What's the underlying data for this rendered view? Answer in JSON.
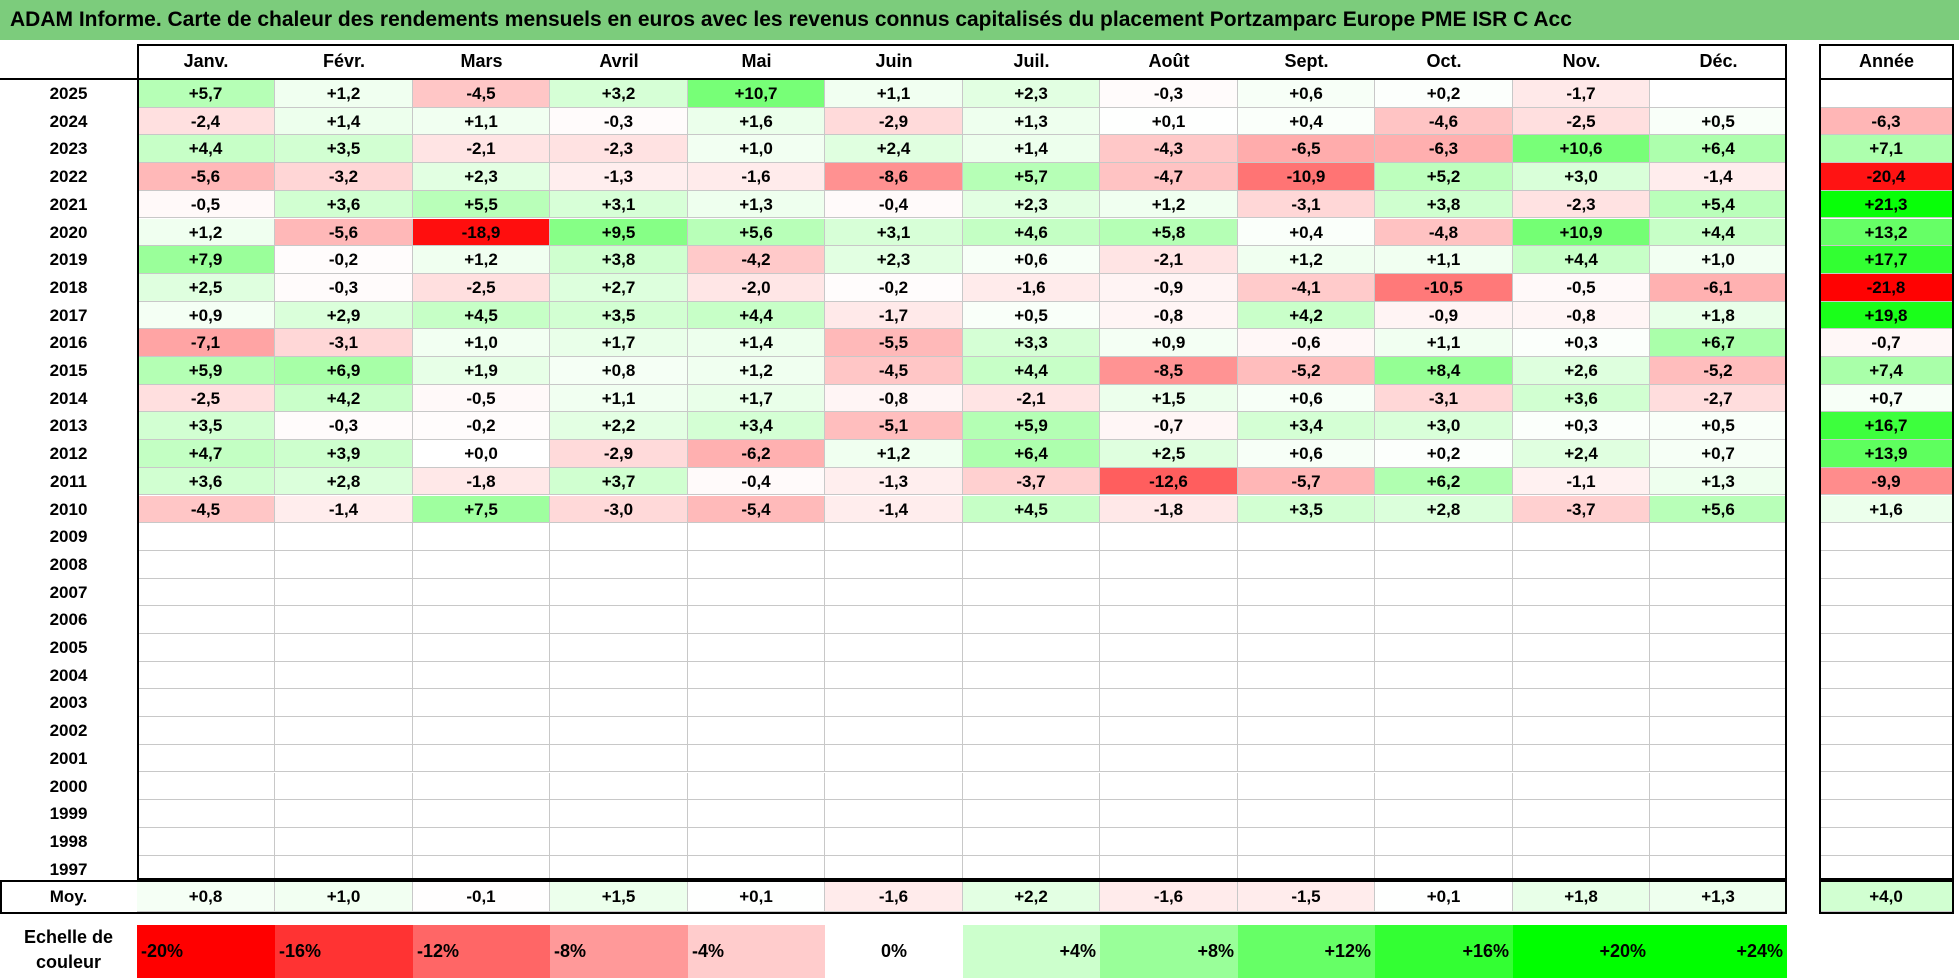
{
  "chart_data": {
    "type": "heatmap",
    "title": "ADAM Informe. Carte de chaleur des rendements mensuels en euros avec les revenus connus capitalisés du placement Portzamparc Europe PME ISR C Acc",
    "months": [
      "Janv.",
      "Févr.",
      "Mars",
      "Avril",
      "Mai",
      "Juin",
      "Juil.",
      "Août",
      "Sept.",
      "Oct.",
      "Nov.",
      "Déc."
    ],
    "year_header": "Année",
    "rows": [
      {
        "year": "2025",
        "months": [
          "+5,7",
          "+1,2",
          "-4,5",
          "+3,2",
          "+10,7",
          "+1,1",
          "+2,3",
          "-0,3",
          "+0,6",
          "+0,2",
          "-1,7",
          ""
        ],
        "annual": ""
      },
      {
        "year": "2024",
        "months": [
          "-2,4",
          "+1,4",
          "+1,1",
          "-0,3",
          "+1,6",
          "-2,9",
          "+1,3",
          "+0,1",
          "+0,4",
          "-4,6",
          "-2,5",
          "+0,5"
        ],
        "annual": "-6,3"
      },
      {
        "year": "2023",
        "months": [
          "+4,4",
          "+3,5",
          "-2,1",
          "-2,3",
          "+1,0",
          "+2,4",
          "+1,4",
          "-4,3",
          "-6,5",
          "-6,3",
          "+10,6",
          "+6,4"
        ],
        "annual": "+7,1"
      },
      {
        "year": "2022",
        "months": [
          "-5,6",
          "-3,2",
          "+2,3",
          "-1,3",
          "-1,6",
          "-8,6",
          "+5,7",
          "-4,7",
          "-10,9",
          "+5,2",
          "+3,0",
          "-1,4"
        ],
        "annual": "-20,4"
      },
      {
        "year": "2021",
        "months": [
          "-0,5",
          "+3,6",
          "+5,5",
          "+3,1",
          "+1,3",
          "-0,4",
          "+2,3",
          "+1,2",
          "-3,1",
          "+3,8",
          "-2,3",
          "+5,4"
        ],
        "annual": "+21,3"
      },
      {
        "year": "2020",
        "months": [
          "+1,2",
          "-5,6",
          "-18,9",
          "+9,5",
          "+5,6",
          "+3,1",
          "+4,6",
          "+5,8",
          "+0,4",
          "-4,8",
          "+10,9",
          "+4,4"
        ],
        "annual": "+13,2"
      },
      {
        "year": "2019",
        "months": [
          "+7,9",
          "-0,2",
          "+1,2",
          "+3,8",
          "-4,2",
          "+2,3",
          "+0,6",
          "-2,1",
          "+1,2",
          "+1,1",
          "+4,4",
          "+1,0"
        ],
        "annual": "+17,7"
      },
      {
        "year": "2018",
        "months": [
          "+2,5",
          "-0,3",
          "-2,5",
          "+2,7",
          "-2,0",
          "-0,2",
          "-1,6",
          "-0,9",
          "-4,1",
          "-10,5",
          "-0,5",
          "-6,1"
        ],
        "annual": "-21,8"
      },
      {
        "year": "2017",
        "months": [
          "+0,9",
          "+2,9",
          "+4,5",
          "+3,5",
          "+4,4",
          "-1,7",
          "+0,5",
          "-0,8",
          "+4,2",
          "-0,9",
          "-0,8",
          "+1,8"
        ],
        "annual": "+19,8"
      },
      {
        "year": "2016",
        "months": [
          "-7,1",
          "-3,1",
          "+1,0",
          "+1,7",
          "+1,4",
          "-5,5",
          "+3,3",
          "+0,9",
          "-0,6",
          "+1,1",
          "+0,3",
          "+6,7"
        ],
        "annual": "-0,7"
      },
      {
        "year": "2015",
        "months": [
          "+5,9",
          "+6,9",
          "+1,9",
          "+0,8",
          "+1,2",
          "-4,5",
          "+4,4",
          "-8,5",
          "-5,2",
          "+8,4",
          "+2,6",
          "-5,2"
        ],
        "annual": "+7,4"
      },
      {
        "year": "2014",
        "months": [
          "-2,5",
          "+4,2",
          "-0,5",
          "+1,1",
          "+1,7",
          "-0,8",
          "-2,1",
          "+1,5",
          "+0,6",
          "-3,1",
          "+3,6",
          "-2,7"
        ],
        "annual": "+0,7"
      },
      {
        "year": "2013",
        "months": [
          "+3,5",
          "-0,3",
          "-0,2",
          "+2,2",
          "+3,4",
          "-5,1",
          "+5,9",
          "-0,7",
          "+3,4",
          "+3,0",
          "+0,3",
          "+0,5"
        ],
        "annual": "+16,7"
      },
      {
        "year": "2012",
        "months": [
          "+4,7",
          "+3,9",
          "+0,0",
          "-2,9",
          "-6,2",
          "+1,2",
          "+6,4",
          "+2,5",
          "+0,6",
          "+0,2",
          "+2,4",
          "+0,7"
        ],
        "annual": "+13,9"
      },
      {
        "year": "2011",
        "months": [
          "+3,6",
          "+2,8",
          "-1,8",
          "+3,7",
          "-0,4",
          "-1,3",
          "-3,7",
          "-12,6",
          "-5,7",
          "+6,2",
          "-1,1",
          "+1,3"
        ],
        "annual": "-9,9"
      },
      {
        "year": "2010",
        "months": [
          "-4,5",
          "-1,4",
          "+7,5",
          "-3,0",
          "-5,4",
          "-1,4",
          "+4,5",
          "-1,8",
          "+3,5",
          "+2,8",
          "-3,7",
          "+5,6"
        ],
        "annual": "+1,6"
      },
      {
        "year": "2009",
        "months": [
          "",
          "",
          "",
          "",
          "",
          "",
          "",
          "",
          "",
          "",
          "",
          ""
        ],
        "annual": ""
      },
      {
        "year": "2008",
        "months": [
          "",
          "",
          "",
          "",
          "",
          "",
          "",
          "",
          "",
          "",
          "",
          ""
        ],
        "annual": ""
      },
      {
        "year": "2007",
        "months": [
          "",
          "",
          "",
          "",
          "",
          "",
          "",
          "",
          "",
          "",
          "",
          ""
        ],
        "annual": ""
      },
      {
        "year": "2006",
        "months": [
          "",
          "",
          "",
          "",
          "",
          "",
          "",
          "",
          "",
          "",
          "",
          ""
        ],
        "annual": ""
      },
      {
        "year": "2005",
        "months": [
          "",
          "",
          "",
          "",
          "",
          "",
          "",
          "",
          "",
          "",
          "",
          ""
        ],
        "annual": ""
      },
      {
        "year": "2004",
        "months": [
          "",
          "",
          "",
          "",
          "",
          "",
          "",
          "",
          "",
          "",
          "",
          ""
        ],
        "annual": ""
      },
      {
        "year": "2003",
        "months": [
          "",
          "",
          "",
          "",
          "",
          "",
          "",
          "",
          "",
          "",
          "",
          ""
        ],
        "annual": ""
      },
      {
        "year": "2002",
        "months": [
          "",
          "",
          "",
          "",
          "",
          "",
          "",
          "",
          "",
          "",
          "",
          ""
        ],
        "annual": ""
      },
      {
        "year": "2001",
        "months": [
          "",
          "",
          "",
          "",
          "",
          "",
          "",
          "",
          "",
          "",
          "",
          ""
        ],
        "annual": ""
      },
      {
        "year": "2000",
        "months": [
          "",
          "",
          "",
          "",
          "",
          "",
          "",
          "",
          "",
          "",
          "",
          ""
        ],
        "annual": ""
      },
      {
        "year": "1999",
        "months": [
          "",
          "",
          "",
          "",
          "",
          "",
          "",
          "",
          "",
          "",
          "",
          ""
        ],
        "annual": ""
      },
      {
        "year": "1998",
        "months": [
          "",
          "",
          "",
          "",
          "",
          "",
          "",
          "",
          "",
          "",
          "",
          ""
        ],
        "annual": ""
      },
      {
        "year": "1997",
        "months": [
          "",
          "",
          "",
          "",
          "",
          "",
          "",
          "",
          "",
          "",
          "",
          ""
        ],
        "annual": ""
      }
    ],
    "average": {
      "label": "Moy.",
      "months": [
        "+0,8",
        "+1,0",
        "-0,1",
        "+1,5",
        "+0,1",
        "-1,6",
        "+2,2",
        "-1,6",
        "-1,5",
        "+0,1",
        "+1,8",
        "+1,3"
      ],
      "annual": "+4,0"
    },
    "scale": {
      "label": "Echelle de couleur",
      "steps": [
        {
          "label": "-20%",
          "value": -20
        },
        {
          "label": "-16%",
          "value": -16
        },
        {
          "label": "-12%",
          "value": -12
        },
        {
          "label": "-8%",
          "value": -8
        },
        {
          "label": "-4%",
          "value": -4
        },
        {
          "label": "0%",
          "value": 0
        },
        {
          "label": "+4%",
          "value": 4
        },
        {
          "label": "+8%",
          "value": 8
        },
        {
          "label": "+12%",
          "value": 12
        },
        {
          "label": "+16%",
          "value": 16
        },
        {
          "label": "+20%",
          "value": 20
        },
        {
          "label": "+24%",
          "value": 24
        }
      ]
    },
    "colors": {
      "negative_max": "#ff0000",
      "neutral": "#ffffff",
      "positive_max": "#00ff00",
      "title_bg": "#7ccc7c"
    }
  }
}
